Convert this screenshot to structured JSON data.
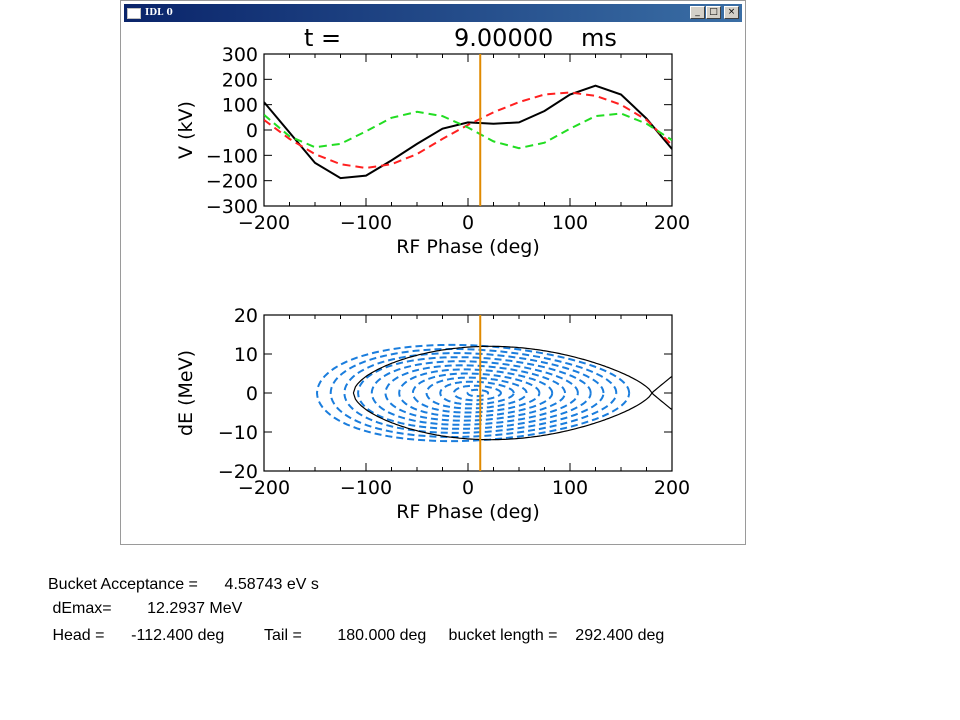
{
  "window": {
    "title": "IDL 0",
    "controls": {
      "minimize": "_",
      "maximize": "□",
      "close": "×"
    }
  },
  "plot": {
    "time_label": "t  =",
    "time_value": "9.00000",
    "time_unit": "ms"
  },
  "chart_data": [
    {
      "type": "line",
      "title": "",
      "xlabel": "RF Phase (deg)",
      "ylabel": "V (kV)",
      "xlim": [
        -200,
        200
      ],
      "ylim": [
        -300,
        300
      ],
      "xticks": [
        "−200",
        "−100",
        "0",
        "100",
        "200"
      ],
      "yticks": [
        "300",
        "200",
        "100",
        "0",
        "−100",
        "−200",
        "−300"
      ],
      "marker_phase": 12,
      "colors": {
        "total": "#000000",
        "rf1": "#ff2020",
        "rf2": "#22dd22",
        "marker": "#e08a00"
      },
      "series": [
        {
          "style": "solid",
          "color": "#000000",
          "x": [
            -200,
            -175,
            -150,
            -125,
            -100,
            -75,
            -50,
            -25,
            0,
            25,
            50,
            75,
            100,
            125,
            150,
            175,
            200
          ],
          "y": [
            110,
            -10,
            -130,
            -190,
            -180,
            -120,
            -55,
            5,
            30,
            25,
            30,
            75,
            140,
            175,
            140,
            45,
            -75
          ]
        },
        {
          "style": "dashed",
          "color": "#ff2020",
          "x": [
            -200,
            -175,
            -150,
            -125,
            -100,
            -75,
            -50,
            -25,
            0,
            25,
            50,
            75,
            100,
            125,
            150,
            175,
            200
          ],
          "y": [
            40,
            -35,
            -95,
            -135,
            -150,
            -135,
            -95,
            -35,
            20,
            70,
            110,
            140,
            148,
            135,
            100,
            40,
            -60
          ]
        },
        {
          "style": "dashed",
          "color": "#22dd22",
          "x": [
            -200,
            -175,
            -150,
            -125,
            -100,
            -75,
            -50,
            -25,
            0,
            25,
            50,
            75,
            100,
            125,
            150,
            175,
            200
          ],
          "y": [
            60,
            -25,
            -68,
            -55,
            -5,
            48,
            72,
            55,
            10,
            -45,
            -72,
            -50,
            5,
            55,
            65,
            25,
            -40
          ]
        }
      ]
    },
    {
      "type": "line",
      "title": "",
      "xlabel": "RF Phase (deg)",
      "ylabel": "dE (MeV)",
      "xlim": [
        -200,
        200
      ],
      "ylim": [
        -20,
        20
      ],
      "xticks": [
        "−200",
        "−100",
        "0",
        "100",
        "200"
      ],
      "yticks": [
        "20",
        "10",
        "0",
        "−10",
        "−20"
      ],
      "marker_phase": 12,
      "colors": {
        "separatrix": "#000000",
        "orbits": "#1a7ddd",
        "marker": "#e08a00"
      },
      "separatrix": {
        "head": -112.4,
        "tail": 180.0,
        "demax": 12.2937
      },
      "orbits": {
        "count": 12,
        "center": 10,
        "max_amplitude": 12.2,
        "min_amplitude": 0.8
      }
    }
  ],
  "info": {
    "line1": "Bucket Acceptance =      4.58743 eV s",
    "line2": " dEmax=        12.2937 MeV",
    "line3": " Head =      -112.400 deg         Tail =        180.000 deg     bucket length =    292.400 deg"
  }
}
